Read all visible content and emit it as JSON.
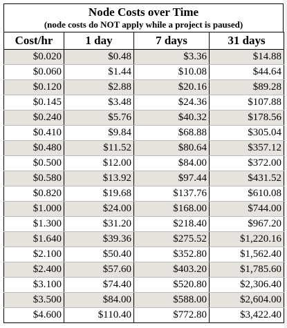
{
  "sheet": {
    "title": "Node Costs over Time",
    "subtitle": "(node costs do NOT apply while a project is paused)"
  },
  "table": {
    "headers": [
      "Cost/hr",
      "1 day",
      "7 days",
      "31 days"
    ],
    "rows": [
      [
        "$0.020",
        "$0.48",
        "$3.36",
        "$14.88"
      ],
      [
        "$0.060",
        "$1.44",
        "$10.08",
        "$44.64"
      ],
      [
        "$0.120",
        "$2.88",
        "$20.16",
        "$89.28"
      ],
      [
        "$0.145",
        "$3.48",
        "$24.36",
        "$107.88"
      ],
      [
        "$0.240",
        "$5.76",
        "$40.32",
        "$178.56"
      ],
      [
        "$0.410",
        "$9.84",
        "$68.88",
        "$305.04"
      ],
      [
        "$0.480",
        "$11.52",
        "$80.64",
        "$357.12"
      ],
      [
        "$0.500",
        "$12.00",
        "$84.00",
        "$372.00"
      ],
      [
        "$0.580",
        "$13.92",
        "$97.44",
        "$431.52"
      ],
      [
        "$0.820",
        "$19.68",
        "$137.76",
        "$610.08"
      ],
      [
        "$1.000",
        "$24.00",
        "$168.00",
        "$744.00"
      ],
      [
        "$1.300",
        "$31.20",
        "$218.40",
        "$967.20"
      ],
      [
        "$1.640",
        "$39.36",
        "$275.52",
        "$1,220.16"
      ],
      [
        "$2.100",
        "$50.40",
        "$352.80",
        "$1,562.40"
      ],
      [
        "$2.400",
        "$57.60",
        "$403.20",
        "$1,785.60"
      ],
      [
        "$3.100",
        "$74.40",
        "$520.80",
        "$2,306.40"
      ],
      [
        "$3.500",
        "$84.00",
        "$588.00",
        "$2,604.00"
      ],
      [
        "$4.600",
        "$110.40",
        "$772.80",
        "$3,422.40"
      ]
    ]
  },
  "colors": {
    "band": "#e6e3df",
    "plain": "#ffffff",
    "border": "#000000",
    "row_divider": "#bdbdbd"
  }
}
